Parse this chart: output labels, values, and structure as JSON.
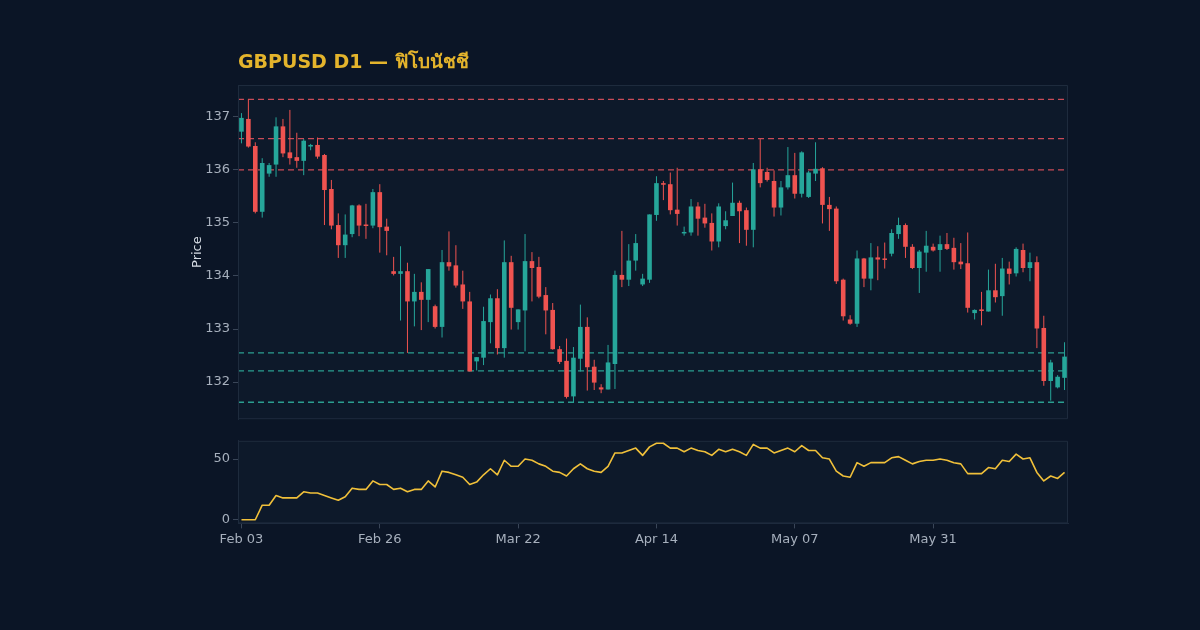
{
  "chart_data": [
    {
      "type": "candlestick",
      "title": "GBPUSD D1 — ฟิโบนัชชี",
      "ylabel": "Price",
      "categories": [
        null,
        null,
        null,
        null,
        null,
        null,
        null,
        null,
        null,
        null,
        null,
        null,
        null,
        null,
        null,
        null,
        null,
        null,
        null,
        null,
        null,
        null,
        null,
        null,
        null,
        null,
        null,
        null,
        null,
        null,
        null,
        null,
        null,
        null,
        null,
        null,
        null,
        null,
        null,
        null,
        null,
        null,
        null,
        null,
        null,
        null,
        null,
        null,
        null,
        null,
        null,
        null,
        null,
        null,
        null,
        null,
        null,
        null,
        null,
        null,
        null,
        null,
        null,
        null,
        null,
        null,
        null,
        null,
        null,
        null,
        null,
        null,
        null,
        null,
        null,
        null,
        null,
        null,
        null,
        null,
        null,
        null,
        null,
        null,
        null,
        null,
        null,
        null,
        null,
        null,
        null,
        null,
        null,
        null,
        null,
        null,
        null,
        null,
        null,
        null,
        null,
        null,
        null,
        null,
        null,
        null,
        null,
        null,
        null,
        null,
        null,
        null,
        null,
        null,
        null,
        null,
        null,
        null,
        null,
        null
      ],
      "ohlc": [
        [
          136.72,
          137.07,
          136.5,
          136.98
        ],
        [
          136.96,
          137.33,
          136.42,
          136.44
        ],
        [
          136.45,
          136.52,
          135.18,
          135.21
        ],
        [
          135.21,
          136.22,
          135.1,
          136.13
        ],
        [
          135.93,
          136.13,
          135.87,
          136.09
        ],
        [
          136.1,
          136.99,
          135.87,
          136.82
        ],
        [
          136.82,
          136.96,
          136.24,
          136.31
        ],
        [
          136.33,
          137.13,
          136.1,
          136.22
        ],
        [
          136.24,
          136.7,
          136.04,
          136.17
        ],
        [
          136.17,
          136.58,
          135.9,
          136.55
        ],
        [
          136.44,
          136.49,
          136.37,
          136.47
        ],
        [
          136.47,
          136.61,
          136.21,
          136.25
        ],
        [
          136.28,
          136.3,
          134.96,
          135.62
        ],
        [
          135.64,
          135.81,
          134.88,
          134.95
        ],
        [
          134.96,
          135.18,
          134.34,
          134.58
        ],
        [
          134.58,
          135.16,
          134.34,
          134.78
        ],
        [
          134.79,
          135.34,
          134.73,
          135.33
        ],
        [
          135.33,
          135.35,
          134.75,
          134.95
        ],
        [
          134.97,
          135.36,
          134.7,
          134.95
        ],
        [
          134.95,
          135.64,
          134.9,
          135.58
        ],
        [
          135.58,
          135.73,
          134.44,
          134.92
        ],
        [
          134.93,
          135.08,
          134.39,
          134.85
        ],
        [
          134.09,
          134.36,
          134.01,
          134.04
        ],
        [
          134.04,
          134.56,
          133.16,
          134.09
        ],
        [
          134.09,
          134.25,
          132.55,
          133.52
        ],
        [
          133.52,
          134.04,
          133.05,
          133.7
        ],
        [
          133.7,
          133.88,
          132.98,
          133.55
        ],
        [
          133.55,
          134.13,
          133.13,
          134.13
        ],
        [
          133.43,
          133.46,
          133.01,
          133.04
        ],
        [
          133.04,
          134.49,
          132.84,
          134.26
        ],
        [
          134.26,
          134.84,
          134.1,
          134.18
        ],
        [
          134.2,
          134.58,
          133.78,
          133.82
        ],
        [
          133.84,
          134.1,
          133.38,
          133.52
        ],
        [
          133.52,
          133.7,
          132.2,
          132.2
        ],
        [
          132.39,
          132.47,
          132.22,
          132.47
        ],
        [
          132.46,
          133.42,
          132.32,
          133.15
        ],
        [
          133.13,
          133.65,
          132.73,
          133.58
        ],
        [
          133.58,
          133.75,
          132.52,
          132.64
        ],
        [
          132.64,
          134.67,
          132.46,
          134.26
        ],
        [
          134.26,
          134.38,
          132.99,
          133.4
        ],
        [
          133.13,
          133.37,
          132.99,
          133.37
        ],
        [
          133.35,
          134.79,
          132.58,
          134.28
        ],
        [
          134.28,
          134.45,
          133.52,
          134.15
        ],
        [
          134.17,
          134.36,
          133.58,
          133.61
        ],
        [
          133.64,
          133.79,
          132.9,
          133.35
        ],
        [
          133.36,
          133.49,
          132.61,
          132.62
        ],
        [
          132.62,
          132.68,
          132.34,
          132.38
        ],
        [
          132.4,
          132.82,
          131.69,
          131.72
        ],
        [
          131.73,
          132.66,
          131.61,
          132.46
        ],
        [
          132.44,
          133.46,
          132.2,
          133.04
        ],
        [
          133.04,
          133.22,
          131.84,
          132.28
        ],
        [
          132.29,
          132.42,
          131.85,
          131.99
        ],
        [
          131.9,
          131.96,
          131.79,
          131.86
        ],
        [
          131.86,
          132.7,
          131.86,
          132.37
        ],
        [
          132.34,
          134.1,
          131.87,
          134.02
        ],
        [
          134.02,
          134.85,
          133.79,
          133.93
        ],
        [
          133.93,
          134.6,
          133.81,
          134.29
        ],
        [
          134.29,
          134.79,
          134.1,
          134.62
        ],
        [
          133.84,
          134.04,
          133.81,
          133.95
        ],
        [
          133.93,
          135.16,
          133.87,
          135.16
        ],
        [
          135.15,
          135.88,
          135.04,
          135.75
        ],
        [
          135.75,
          135.79,
          135.43,
          135.72
        ],
        [
          135.73,
          135.95,
          135.16,
          135.24
        ],
        [
          135.25,
          136.04,
          134.95,
          135.17
        ],
        [
          134.81,
          134.93,
          134.76,
          134.83
        ],
        [
          134.82,
          135.45,
          134.76,
          135.31
        ],
        [
          135.31,
          135.39,
          134.76,
          135.08
        ],
        [
          135.1,
          135.36,
          134.91,
          134.99
        ],
        [
          135.0,
          135.18,
          134.48,
          134.65
        ],
        [
          134.65,
          135.37,
          134.54,
          135.31
        ],
        [
          134.94,
          135.22,
          134.88,
          135.05
        ],
        [
          135.13,
          135.76,
          135.13,
          135.38
        ],
        [
          135.38,
          135.42,
          134.62,
          135.22
        ],
        [
          135.24,
          135.29,
          134.57,
          134.87
        ],
        [
          134.87,
          136.13,
          134.54,
          136.01
        ],
        [
          136.01,
          136.58,
          135.67,
          135.75
        ],
        [
          135.96,
          136.04,
          135.78,
          135.81
        ],
        [
          135.79,
          135.99,
          135.12,
          135.29
        ],
        [
          135.29,
          135.79,
          135.14,
          135.67
        ],
        [
          135.67,
          136.43,
          135.63,
          135.9
        ],
        [
          135.9,
          136.32,
          135.46,
          135.55
        ],
        [
          135.55,
          136.35,
          135.48,
          136.33
        ],
        [
          135.49,
          135.98,
          135.47,
          135.95
        ],
        [
          135.93,
          136.52,
          135.79,
          136.02
        ],
        [
          136.03,
          136.05,
          134.99,
          135.34
        ],
        [
          135.34,
          135.49,
          134.85,
          135.26
        ],
        [
          135.27,
          135.31,
          133.85,
          133.9
        ],
        [
          133.93,
          133.95,
          133.16,
          133.24
        ],
        [
          133.18,
          133.26,
          133.08,
          133.1
        ],
        [
          133.1,
          134.48,
          133.04,
          134.33
        ],
        [
          134.33,
          134.34,
          133.79,
          133.95
        ],
        [
          133.95,
          134.62,
          133.73,
          134.35
        ],
        [
          134.35,
          134.56,
          133.92,
          134.31
        ],
        [
          134.33,
          134.63,
          134.14,
          134.31
        ],
        [
          134.42,
          134.88,
          134.37,
          134.81
        ],
        [
          134.79,
          135.1,
          134.7,
          134.96
        ],
        [
          134.96,
          134.99,
          134.34,
          134.55
        ],
        [
          134.55,
          134.6,
          134.13,
          134.15
        ],
        [
          134.15,
          134.49,
          133.68,
          134.46
        ],
        [
          134.44,
          134.85,
          134.08,
          134.57
        ],
        [
          134.55,
          134.61,
          134.46,
          134.48
        ],
        [
          134.49,
          134.76,
          134.08,
          134.6
        ],
        [
          134.6,
          134.81,
          134.49,
          134.51
        ],
        [
          134.53,
          134.72,
          134.12,
          134.26
        ],
        [
          134.27,
          134.62,
          134.13,
          134.22
        ],
        [
          134.24,
          134.82,
          133.31,
          133.4
        ],
        [
          133.3,
          133.37,
          133.18,
          133.36
        ],
        [
          133.37,
          133.7,
          133.07,
          133.34
        ],
        [
          133.33,
          134.12,
          133.33,
          133.73
        ],
        [
          133.73,
          134.23,
          133.5,
          133.6
        ],
        [
          133.62,
          134.34,
          133.25,
          134.14
        ],
        [
          134.14,
          134.27,
          133.84,
          134.04
        ],
        [
          134.05,
          134.54,
          133.99,
          134.51
        ],
        [
          134.49,
          134.61,
          134.07,
          134.15
        ],
        [
          134.15,
          134.44,
          133.9,
          134.26
        ],
        [
          134.26,
          134.37,
          132.64,
          133.01
        ],
        [
          133.02,
          133.25,
          131.93,
          132.02
        ],
        [
          132.02,
          132.42,
          131.65,
          132.37
        ],
        [
          131.9,
          132.13,
          131.88,
          132.1
        ],
        [
          132.08,
          132.75,
          131.85,
          132.48
        ]
      ],
      "ylim": [
        131.3,
        137.6
      ],
      "yticks": [
        132,
        133,
        134,
        135,
        136,
        137
      ],
      "ref_lines": [
        {
          "axis": "y",
          "value": 137.33,
          "color": "#c94b57",
          "line_style": "dashed"
        },
        {
          "axis": "y",
          "value": 136.59,
          "color": "#c94b57",
          "line_style": "dashed"
        },
        {
          "axis": "y",
          "value": 136.0,
          "color": "#c94b57",
          "line_style": "dashed"
        },
        {
          "axis": "y",
          "value": 132.55,
          "color": "#2a9d90",
          "line_style": "dashed"
        },
        {
          "axis": "y",
          "value": 132.21,
          "color": "#2a9d90",
          "line_style": "dashed"
        },
        {
          "axis": "y",
          "value": 131.62,
          "color": "#2a9d90",
          "line_style": "dashed"
        }
      ]
    },
    {
      "type": "line",
      "categories": [
        "Feb 03",
        null,
        null,
        null,
        null,
        null,
        null,
        null,
        null,
        null,
        null,
        null,
        null,
        null,
        null,
        null,
        null,
        null,
        null,
        null,
        "Feb 26",
        null,
        null,
        null,
        null,
        null,
        null,
        null,
        null,
        null,
        null,
        null,
        null,
        null,
        null,
        null,
        null,
        null,
        null,
        null,
        "Mar 22",
        null,
        null,
        null,
        null,
        null,
        null,
        null,
        null,
        null,
        null,
        null,
        null,
        null,
        null,
        null,
        null,
        null,
        null,
        null,
        "Apr 14",
        null,
        null,
        null,
        null,
        null,
        null,
        null,
        null,
        null,
        null,
        null,
        null,
        null,
        null,
        null,
        null,
        null,
        null,
        null,
        "May 07",
        null,
        null,
        null,
        null,
        null,
        null,
        null,
        null,
        null,
        null,
        null,
        null,
        null,
        null,
        null,
        null,
        null,
        null,
        null,
        "May 31",
        null,
        null,
        null,
        null,
        null,
        null,
        null,
        null,
        null,
        null,
        null,
        null,
        null,
        null,
        null,
        null,
        null,
        null,
        null
      ],
      "series": [
        {
          "color": "#f0c03a",
          "values": [
            0,
            0,
            0,
            12,
            12,
            20,
            18,
            18,
            18,
            23,
            22,
            22,
            20,
            18,
            16,
            19,
            26,
            25,
            25,
            32,
            29,
            29,
            25,
            26,
            23,
            25,
            25,
            32,
            27,
            40,
            39,
            37,
            35,
            29,
            31,
            37,
            42,
            37,
            49,
            44,
            44,
            50,
            49,
            46,
            44,
            40,
            39,
            36,
            42,
            46,
            42,
            40,
            39,
            44,
            55,
            55,
            57,
            59,
            53,
            60,
            63,
            63,
            59,
            59,
            56,
            59,
            57,
            56,
            53,
            58,
            56,
            58,
            56,
            53,
            62,
            59,
            59,
            55,
            57,
            59,
            56,
            61,
            57,
            57,
            51,
            50,
            40,
            36,
            35,
            47,
            44,
            47,
            47,
            47,
            51,
            52,
            49,
            46,
            48,
            49,
            49,
            50,
            49,
            47,
            46,
            38,
            38,
            38,
            43,
            42,
            49,
            48,
            54,
            50,
            51,
            39,
            32,
            36,
            34,
            39
          ]
        }
      ],
      "ylim": [
        -3,
        65
      ],
      "yticks": [
        0,
        50
      ]
    }
  ]
}
